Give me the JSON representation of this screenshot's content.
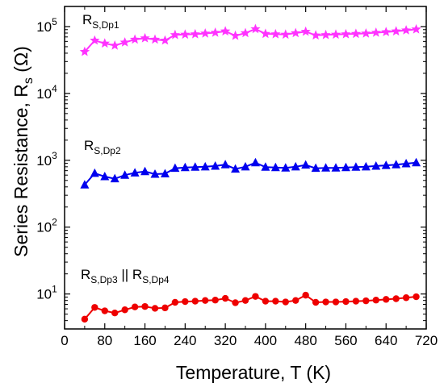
{
  "chart_data": {
    "type": "line",
    "xlabel": "Temperature, T (K)",
    "ylabel_main": "Series Resistance, R",
    "ylabel_sub": "s",
    "ylabel_unit": " (Ω)",
    "xlim": [
      0,
      720
    ],
    "ylim": [
      3,
      200000
    ],
    "y_scale": "log",
    "x_ticks": [
      0,
      80,
      160,
      240,
      320,
      400,
      480,
      560,
      640,
      720
    ],
    "y_ticks": [
      {
        "value": 10,
        "base": "10",
        "exp": "1"
      },
      {
        "value": 100,
        "base": "10",
        "exp": "2"
      },
      {
        "value": 1000,
        "base": "10",
        "exp": "3"
      },
      {
        "value": 10000,
        "base": "10",
        "exp": "4"
      },
      {
        "value": 100000,
        "base": "10",
        "exp": "5"
      }
    ],
    "grid": false,
    "x": [
      40,
      60,
      80,
      100,
      120,
      140,
      160,
      180,
      200,
      220,
      240,
      260,
      280,
      300,
      320,
      340,
      360,
      380,
      400,
      420,
      440,
      460,
      480,
      500,
      520,
      540,
      560,
      580,
      600,
      620,
      640,
      660,
      680,
      700
    ],
    "series": [
      {
        "label_main": "R",
        "label_sub": "S,Dp1",
        "marker": "star",
        "color": "#ff33ff",
        "values": [
          42000,
          62000,
          56000,
          52000,
          58000,
          64000,
          67000,
          64000,
          62000,
          75000,
          76000,
          77000,
          79000,
          81000,
          85000,
          73000,
          80000,
          92000,
          78000,
          77000,
          76000,
          80000,
          84000,
          74000,
          75000,
          76000,
          77000,
          78000,
          79000,
          81000,
          83000,
          85000,
          88000,
          91000
        ]
      },
      {
        "label_main": "R",
        "label_sub": "S,Dp2",
        "marker": "triangle",
        "color": "#0000ee",
        "values": [
          430,
          640,
          570,
          530,
          600,
          650,
          680,
          620,
          630,
          760,
          780,
          790,
          800,
          820,
          860,
          740,
          800,
          920,
          790,
          780,
          770,
          800,
          850,
          760,
          770,
          770,
          780,
          790,
          800,
          820,
          840,
          860,
          890,
          920
        ]
      },
      {
        "label_main": "R",
        "label_sub": "S,Dp3",
        "label_join": " || ",
        "label_main2": "R",
        "label_sub2": "S,Dp4",
        "marker": "circle",
        "color": "#ee0000",
        "values": [
          4.2,
          6.3,
          5.6,
          5.2,
          5.8,
          6.4,
          6.5,
          6.1,
          6.2,
          7.5,
          7.7,
          7.8,
          8.0,
          8.1,
          8.6,
          7.4,
          8.0,
          9.2,
          7.8,
          7.8,
          7.6,
          8.0,
          9.6,
          7.5,
          7.6,
          7.6,
          7.7,
          7.8,
          7.9,
          8.1,
          8.3,
          8.5,
          8.8,
          9.1
        ]
      }
    ]
  }
}
